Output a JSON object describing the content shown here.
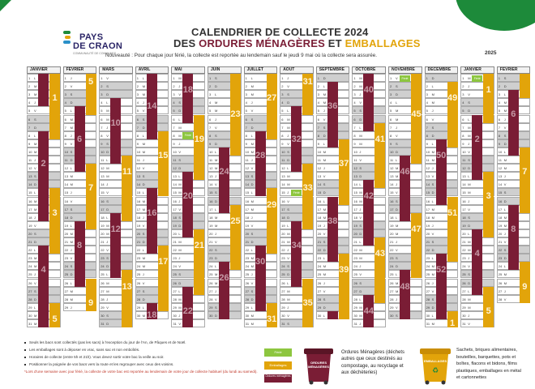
{
  "title_line1": "CALENDRIER DE COLLECTE 2024",
  "title_line2_prefix": "DES",
  "title_line2_om": "ORDURES MÉNAGÈRES",
  "title_line2_and": "ET",
  "title_line2_em": "EMBALLAGES",
  "notice": "Nouveauté : Pour chaque jour férié, la collecte est reportée au lendemain sauf le jeudi 9 mai où la collecte sera assurée.",
  "year_2025": "2025",
  "logo": {
    "line1": "PAYS",
    "line2": "DE CRAON",
    "line3": "COMMUNAUTÉ DE COMMUNES"
  },
  "colors": {
    "om": "#7a1d35",
    "em": "#e2a40a",
    "ferie": "#8dc63f",
    "green": "#1d8a3a",
    "dim": "#cfcfcf"
  },
  "ferie_label": "Férié",
  "weekday_letters": [
    "L",
    "M",
    "M",
    "J",
    "V",
    "S",
    "D"
  ],
  "months": [
    {
      "name": "JANVIER",
      "start": 0,
      "days": 31,
      "om": [
        [
          1,
          4,
          "1"
        ],
        [
          8,
          18,
          "2"
        ],
        [
          22,
          31,
          "4"
        ]
      ],
      "em": [
        [
          1,
          8,
          "1"
        ],
        [
          15,
          22,
          "3"
        ],
        [
          29,
          31,
          "5"
        ]
      ],
      "tags": [
        {
          "day": 1,
          "t": "f"
        }
      ],
      "blocks": [
        {
          "from": 3,
          "to": 4,
          "c": "em",
          "n": "1"
        },
        {
          "from": 11,
          "to": 12,
          "c": "om",
          "n": "2"
        },
        {
          "from": 17,
          "to": 18,
          "c": "em",
          "n": "3"
        },
        {
          "from": 24,
          "to": 25,
          "c": "om",
          "n": "4"
        },
        {
          "from": 30,
          "to": 31,
          "c": "em",
          "n": "5"
        }
      ]
    },
    {
      "name": "FÉVRIER",
      "start": 3,
      "days": 29,
      "om": [
        [
          5,
          12
        ],
        [
          19,
          26
        ]
      ],
      "em": [
        [
          1,
          5
        ],
        [
          12,
          19
        ],
        [
          26,
          29
        ]
      ],
      "tags": [],
      "blocks": [
        {
          "from": 1,
          "to": 2,
          "c": "em",
          "n": "5"
        },
        {
          "from": 8,
          "to": 9,
          "c": "om",
          "n": "6"
        },
        {
          "from": 14,
          "to": 15,
          "c": "em",
          "n": "7"
        },
        {
          "from": 21,
          "to": 22,
          "c": "om",
          "n": "8"
        },
        {
          "from": 28,
          "to": 29,
          "c": "em",
          "n": "9"
        }
      ]
    },
    {
      "name": "MARS",
      "start": 4,
      "days": 31,
      "om": [
        [
          4,
          11
        ],
        [
          18,
          25
        ]
      ],
      "em": [
        [
          11,
          18
        ],
        [
          25,
          31
        ]
      ],
      "tags": [],
      "blocks": [
        {
          "from": 6,
          "to": 7,
          "c": "om",
          "n": "10"
        },
        {
          "from": 12,
          "to": 13,
          "c": "em",
          "n": "11"
        },
        {
          "from": 19,
          "to": 20,
          "c": "om",
          "n": "12"
        },
        {
          "from": 26,
          "to": 27,
          "c": "em",
          "n": "13"
        }
      ]
    },
    {
      "name": "AVRIL",
      "start": 0,
      "days": 30,
      "om": [
        [
          1,
          8
        ],
        [
          15,
          22
        ],
        [
          29,
          30
        ]
      ],
      "em": [
        [
          8,
          15
        ],
        [
          22,
          29
        ]
      ],
      "tags": [
        {
          "day": 1,
          "t": "f"
        }
      ],
      "blocks": [
        {
          "from": 4,
          "to": 5,
          "c": "om",
          "n": "14"
        },
        {
          "from": 10,
          "to": 11,
          "c": "em",
          "n": "15"
        },
        {
          "from": 17,
          "to": 18,
          "c": "om",
          "n": "16"
        },
        {
          "from": 23,
          "to": 24,
          "c": "em",
          "n": "17"
        },
        {
          "from": 30,
          "to": 30,
          "c": "om",
          "n": "18"
        }
      ]
    },
    {
      "name": "MAI",
      "start": 2,
      "days": 31,
      "om": [
        [
          1,
          6
        ],
        [
          13,
          20
        ],
        [
          27,
          31
        ]
      ],
      "em": [
        [
          6,
          13
        ],
        [
          20,
          27
        ]
      ],
      "tags": [
        {
          "day": 1,
          "t": "f"
        },
        {
          "day": 8,
          "t": "f"
        },
        {
          "day": 20,
          "t": "f"
        }
      ],
      "blocks": [
        {
          "from": 2,
          "to": 3,
          "c": "om",
          "n": "18"
        },
        {
          "from": 8,
          "to": 9,
          "c": "em",
          "n": "19"
        },
        {
          "from": 15,
          "to": 16,
          "c": "om",
          "n": "20"
        },
        {
          "from": 21,
          "to": 22,
          "c": "em",
          "n": "21"
        },
        {
          "from": 29,
          "to": 30,
          "c": "om",
          "n": "22"
        }
      ]
    },
    {
      "name": "JUIN",
      "start": 5,
      "days": 30,
      "om": [
        [
          10,
          17
        ],
        [
          24,
          30
        ]
      ],
      "em": [
        [
          1,
          10
        ],
        [
          17,
          24
        ]
      ],
      "tags": [],
      "blocks": [
        {
          "from": 5,
          "to": 6,
          "c": "em",
          "n": "23"
        },
        {
          "from": 12,
          "to": 13,
          "c": "om",
          "n": "24"
        },
        {
          "from": 18,
          "to": 19,
          "c": "em",
          "n": "25"
        },
        {
          "from": 25,
          "to": 26,
          "c": "om",
          "n": "26"
        }
      ]
    },
    {
      "name": "JUILLET",
      "start": 0,
      "days": 31,
      "om": [
        [
          8,
          15
        ],
        [
          22,
          29
        ]
      ],
      "em": [
        [
          1,
          8
        ],
        [
          15,
          22
        ],
        [
          29,
          31
        ]
      ],
      "tags": [
        {
          "day": 14,
          "t": "f"
        }
      ],
      "blocks": [
        {
          "from": 3,
          "to": 4,
          "c": "em",
          "n": "27"
        },
        {
          "from": 10,
          "to": 11,
          "c": "om",
          "n": "28"
        },
        {
          "from": 16,
          "to": 17,
          "c": "em",
          "n": "29"
        },
        {
          "from": 23,
          "to": 24,
          "c": "om",
          "n": "30"
        },
        {
          "from": 30,
          "to": 31,
          "c": "em",
          "n": "31"
        }
      ]
    },
    {
      "name": "AOÛT",
      "start": 3,
      "days": 31,
      "om": [
        [
          5,
          12
        ],
        [
          19,
          26
        ]
      ],
      "em": [
        [
          1,
          5
        ],
        [
          12,
          19
        ],
        [
          26,
          31
        ]
      ],
      "tags": [
        {
          "day": 15,
          "t": "f"
        }
      ],
      "blocks": [
        {
          "from": 1,
          "to": 2,
          "c": "em",
          "n": "31"
        },
        {
          "from": 8,
          "to": 9,
          "c": "om",
          "n": "32"
        },
        {
          "from": 14,
          "to": 15,
          "c": "em",
          "n": "33"
        },
        {
          "from": 21,
          "to": 22,
          "c": "om",
          "n": "34"
        },
        {
          "from": 28,
          "to": 29,
          "c": "em",
          "n": "35"
        }
      ]
    },
    {
      "name": "SEPTEMBRE",
      "start": 6,
      "days": 30,
      "om": [
        [
          2,
          9
        ],
        [
          16,
          23
        ],
        [
          30,
          30
        ]
      ],
      "em": [
        [
          9,
          16
        ],
        [
          23,
          30
        ]
      ],
      "tags": [],
      "blocks": [
        {
          "from": 4,
          "to": 5,
          "c": "om",
          "n": "36"
        },
        {
          "from": 11,
          "to": 12,
          "c": "em",
          "n": "37"
        },
        {
          "from": 18,
          "to": 19,
          "c": "om",
          "n": "38"
        },
        {
          "from": 24,
          "to": 25,
          "c": "em",
          "n": "39"
        }
      ]
    },
    {
      "name": "OCTOBRE",
      "start": 1,
      "days": 31,
      "om": [
        [
          1,
          7
        ],
        [
          14,
          21
        ],
        [
          28,
          31
        ]
      ],
      "em": [
        [
          7,
          14
        ],
        [
          21,
          28
        ]
      ],
      "tags": [],
      "blocks": [
        {
          "from": 2,
          "to": 3,
          "c": "om",
          "n": "40"
        },
        {
          "from": 8,
          "to": 9,
          "c": "em",
          "n": "41"
        },
        {
          "from": 15,
          "to": 16,
          "c": "om",
          "n": "42"
        },
        {
          "from": 22,
          "to": 23,
          "c": "em",
          "n": "43"
        },
        {
          "from": 29,
          "to": 30,
          "c": "om",
          "n": "44"
        }
      ]
    },
    {
      "name": "NOVEMBRE",
      "start": 4,
      "days": 30,
      "om": [
        [
          11,
          18
        ],
        [
          25,
          30
        ]
      ],
      "em": [
        [
          1,
          11
        ],
        [
          18,
          25
        ]
      ],
      "tags": [
        {
          "day": 1,
          "t": "f"
        },
        {
          "day": 11,
          "t": "f"
        }
      ],
      "blocks": [
        {
          "from": 5,
          "to": 6,
          "c": "em",
          "n": "45"
        },
        {
          "from": 12,
          "to": 13,
          "c": "om",
          "n": "46"
        },
        {
          "from": 19,
          "to": 20,
          "c": "em",
          "n": "47"
        },
        {
          "from": 26,
          "to": 27,
          "c": "om",
          "n": "48"
        }
      ]
    },
    {
      "name": "DÉCEMBRE",
      "start": 6,
      "days": 31,
      "om": [
        [
          9,
          16
        ],
        [
          23,
          30
        ]
      ],
      "em": [
        [
          2,
          9
        ],
        [
          16,
          23
        ],
        [
          30,
          31
        ]
      ],
      "tags": [
        {
          "day": 25,
          "t": "f"
        }
      ],
      "blocks": [
        {
          "from": 3,
          "to": 4,
          "c": "em",
          "n": "49"
        },
        {
          "from": 10,
          "to": 11,
          "c": "om",
          "n": "50"
        },
        {
          "from": 17,
          "to": 18,
          "c": "em",
          "n": "51"
        },
        {
          "from": 24,
          "to": 25,
          "c": "om",
          "n": "52"
        },
        {
          "from": 31,
          "to": 31,
          "c": "em",
          "n": "1"
        }
      ]
    },
    {
      "name": "JANVIER",
      "start": 2,
      "days": 31,
      "om": [
        [
          6,
          13
        ],
        [
          20,
          27
        ]
      ],
      "em": [
        [
          1,
          6
        ],
        [
          13,
          20
        ],
        [
          27,
          31
        ]
      ],
      "tags": [
        {
          "day": 1,
          "t": "f"
        }
      ],
      "blocks": [
        {
          "from": 2,
          "to": 3,
          "c": "em",
          "n": "1"
        },
        {
          "from": 8,
          "to": 9,
          "c": "om",
          "n": "2"
        },
        {
          "from": 15,
          "to": 16,
          "c": "em",
          "n": "3"
        },
        {
          "from": 22,
          "to": 23,
          "c": "om",
          "n": "4"
        },
        {
          "from": 29,
          "to": 30,
          "c": "em",
          "n": "5"
        }
      ]
    },
    {
      "name": "FÉVRIER",
      "start": 5,
      "days": 28,
      "om": [
        [
          3,
          10
        ],
        [
          17,
          24
        ]
      ],
      "em": [
        [
          1,
          3
        ],
        [
          10,
          17
        ],
        [
          24,
          28
        ]
      ],
      "tags": [],
      "blocks": [
        {
          "from": 5,
          "to": 6,
          "c": "om",
          "n": "6"
        },
        {
          "from": 12,
          "to": 13,
          "c": "em",
          "n": "7"
        },
        {
          "from": 19,
          "to": 20,
          "c": "om",
          "n": "8"
        },
        {
          "from": 26,
          "to": 27,
          "c": "em",
          "n": "9"
        }
      ]
    }
  ],
  "bullets": [
    "Seuls les bacs sont collectés (pas les sacs) à l'exception du jour de l'An, de Pâques et de Noël.",
    "Les emballages sont à déposer en vrac, sans sac et non emboîtés.",
    "Horaires de collecte (entre 5h et 21h). Vous devez sortir votre bac la veille au soir.",
    "Positionner la poignée de vos bacs vers la route et les regrouper avec ceux des voisins.",
    "*Lors d'une semaine avec jour férié, la collecte de votre bac est reportée au lendemain de votre jour de collecte habituel (du lundi au samedi)."
  ],
  "legend_keys": {
    "ferie": "Férié",
    "emballages": "Emballages",
    "om": "Ordures ménagères"
  },
  "bin_om_label": "ORDURES MÉNAGÈRES",
  "bin_em_label": "EMBALLAGES",
  "om_description": [
    "Ordures Ménagères (déchets",
    "autres que ceux destinés au",
    "compostage, au recyclage et",
    "aux déchèteries)"
  ],
  "em_description": [
    "Sachets, briques alimentaires,",
    "bouteilles, barquettes, pots et",
    "boîtes, flacons et bidons, films",
    "plastiques, emballages en métal",
    "et cartonnettes"
  ]
}
